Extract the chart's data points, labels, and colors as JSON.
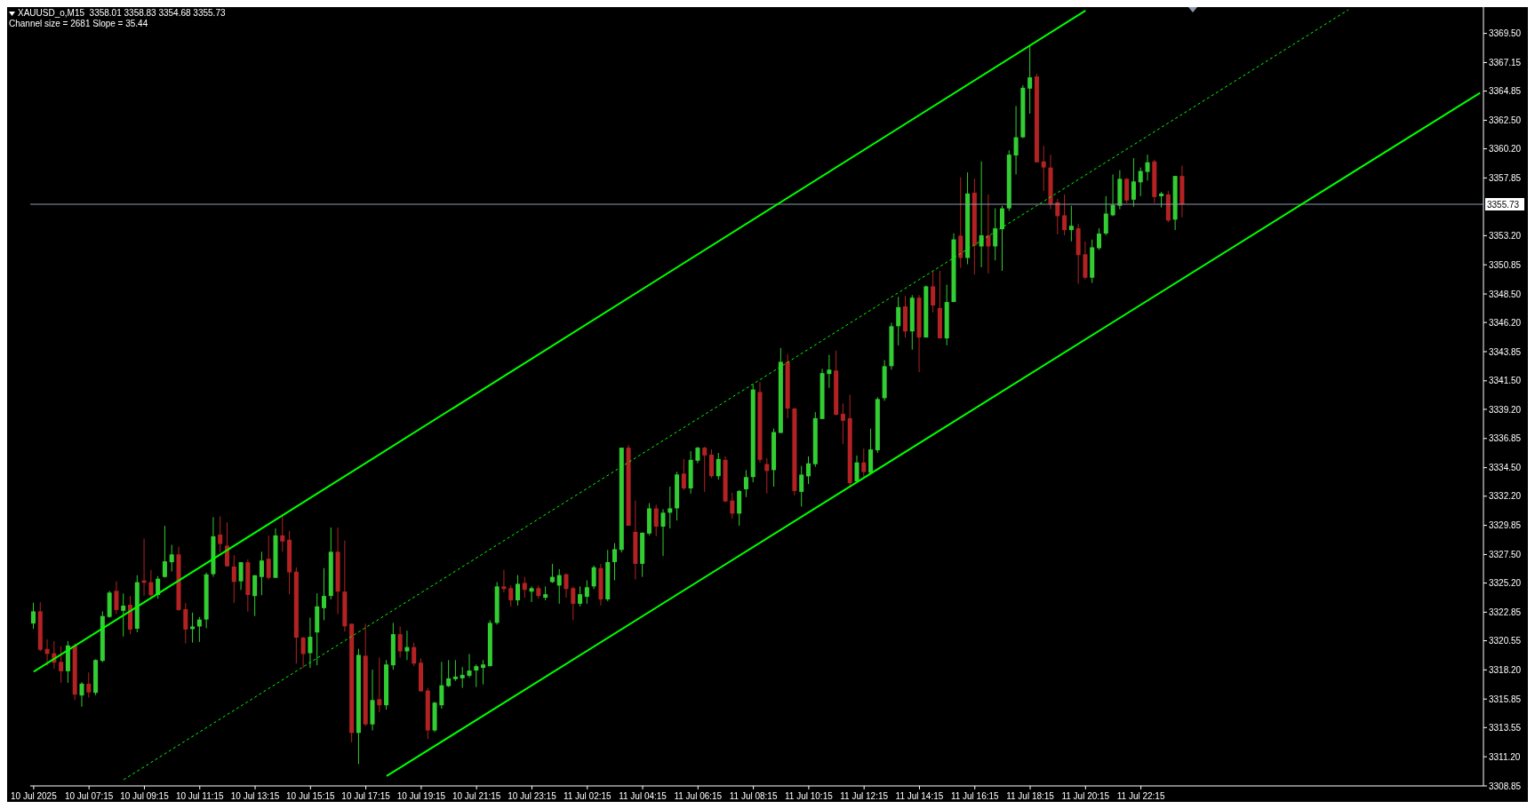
{
  "chart_data": {
    "type": "candlestick",
    "title": "XAUUSD_o,M15  3358.01 3358.83 3354.68 3355.73",
    "subtitle": "Channel size = 2681 Slope = 35.44",
    "categories": [
      "10 Jul 2025",
      null,
      null,
      null,
      null,
      null,
      null,
      null,
      "10 Jul 07:15",
      null,
      null,
      null,
      null,
      null,
      null,
      null,
      "10 Jul 09:15",
      null,
      null,
      null,
      null,
      null,
      null,
      null,
      "10 Jul 11:15",
      null,
      null,
      null,
      null,
      null,
      null,
      null,
      "10 Jul 13:15",
      null,
      null,
      null,
      null,
      null,
      null,
      null,
      "10 Jul 15:15",
      null,
      null,
      null,
      null,
      null,
      null,
      null,
      "10 Jul 17:15",
      null,
      null,
      null,
      null,
      null,
      null,
      null,
      "10 Jul 19:15",
      null,
      null,
      null,
      null,
      null,
      null,
      null,
      "10 Jul 21:15",
      null,
      null,
      null,
      null,
      null,
      null,
      null,
      "10 Jul 23:15",
      null,
      null,
      null,
      null,
      null,
      null,
      null,
      "11 Jul 02:15",
      null,
      null,
      null,
      null,
      null,
      null,
      null,
      "11 Jul 04:15",
      null,
      null,
      null,
      null,
      null,
      null,
      null,
      "11 Jul 06:15",
      null,
      null,
      null,
      null,
      null,
      null,
      null,
      "11 Jul 08:15",
      null,
      null,
      null,
      null,
      null,
      null,
      null,
      "11 Jul 10:15",
      null,
      null,
      null,
      null,
      null,
      null,
      null,
      "11 Jul 12:15",
      null,
      null,
      null,
      null,
      null,
      null,
      null,
      "11 Jul 14:15",
      null,
      null,
      null,
      null,
      null,
      null,
      null,
      "11 Jul 16:15",
      null,
      null,
      null,
      null,
      null,
      null,
      null,
      "11 Jul 18:15",
      null,
      null,
      null,
      null,
      null,
      null,
      null,
      "11 Jul 20:15",
      null,
      null,
      null,
      null,
      null,
      null,
      null,
      "11 Jul 22:15",
      null,
      null,
      null,
      null,
      null,
      null,
      null,
      null,
      null,
      null,
      null,
      null,
      null,
      null,
      null,
      null,
      null,
      null,
      null,
      null,
      null,
      null,
      null,
      null,
      null,
      null,
      null,
      null,
      null,
      null,
      null,
      null,
      null,
      null,
      null,
      null,
      null,
      null,
      null,
      null,
      null,
      null,
      null,
      null,
      null,
      null,
      null,
      null,
      null
    ],
    "ohlc": [
      [
        3321.94,
        3323.61,
        3321.52,
        3322.92
      ],
      [
        3322.92,
        3323.66,
        3319.7,
        3319.82
      ],
      [
        3319.89,
        3320.66,
        3318.54,
        3319.49
      ],
      [
        3319.54,
        3320.52,
        3318.3,
        3318.79
      ],
      [
        3318.84,
        3320.1,
        3317.16,
        3318.09
      ],
      [
        3318.09,
        3320.52,
        3317.16,
        3320.17
      ],
      [
        3320.17,
        3320.35,
        3315.76,
        3316.21
      ],
      [
        3316.14,
        3317.21,
        3315.23,
        3317.09
      ],
      [
        3317.09,
        3318.0,
        3315.97,
        3316.39
      ],
      [
        3316.35,
        3319.05,
        3316.16,
        3319.0
      ],
      [
        3318.93,
        3322.92,
        3318.82,
        3322.54
      ],
      [
        3322.47,
        3324.57,
        3322.4,
        3324.43
      ],
      [
        3324.57,
        3325.34,
        3322.71,
        3323.03
      ],
      [
        3322.96,
        3324.36,
        3320.89,
        3323.38
      ],
      [
        3323.45,
        3324.15,
        3321.08,
        3321.45
      ],
      [
        3321.52,
        3325.83,
        3321.24,
        3325.27
      ],
      [
        3325.41,
        3328.79,
        3324.17,
        3325.22
      ],
      [
        3325.27,
        3326.25,
        3324.08,
        3324.22
      ],
      [
        3324.24,
        3325.76,
        3323.94,
        3325.55
      ],
      [
        3325.69,
        3329.81,
        3325.64,
        3326.95
      ],
      [
        3326.88,
        3328.28,
        3326.13,
        3327.51
      ],
      [
        3327.51,
        3328.14,
        3322.96,
        3323.03
      ],
      [
        3323.1,
        3323.59,
        3320.33,
        3321.45
      ],
      [
        3321.49,
        3322.82,
        3320.4,
        3321.7
      ],
      [
        3321.7,
        3322.47,
        3320.45,
        3322.26
      ],
      [
        3322.26,
        3326.04,
        3321.56,
        3325.9
      ],
      [
        3325.92,
        3330.51,
        3325.71,
        3328.97
      ],
      [
        3329.11,
        3330.58,
        3327.65,
        3328.35
      ],
      [
        3328.21,
        3330.09,
        3326.53,
        3326.55
      ],
      [
        3326.53,
        3327.44,
        3323.59,
        3325.29
      ],
      [
        3325.34,
        3326.88,
        3324.64,
        3326.88
      ],
      [
        3326.88,
        3327.11,
        3322.89,
        3324.24
      ],
      [
        3324.15,
        3325.83,
        3322.54,
        3325.83
      ],
      [
        3325.69,
        3327.72,
        3324.22,
        3327.02
      ],
      [
        3327.16,
        3329.04,
        3325.48,
        3325.62
      ],
      [
        3325.62,
        3329.6,
        3325.62,
        3329.04
      ],
      [
        3329.04,
        3330.72,
        3327.72,
        3328.55
      ],
      [
        3328.69,
        3329.39,
        3324.29,
        3326.06
      ],
      [
        3326.12,
        3326.47,
        3318.71,
        3320.8
      ],
      [
        3320.8,
        3320.87,
        3318.36,
        3319.48
      ],
      [
        3319.55,
        3322.41,
        3318.36,
        3320.87
      ],
      [
        3321.22,
        3324.37,
        3318.57,
        3323.32
      ],
      [
        3323.18,
        3326.4,
        3322.2,
        3324.16
      ],
      [
        3324.16,
        3329.68,
        3323.88,
        3327.72
      ],
      [
        3327.72,
        3329.68,
        3322.69,
        3324.51
      ],
      [
        3324.51,
        3328.63,
        3321.29,
        3321.71
      ],
      [
        3321.92,
        3321.92,
        3312.35,
        3313.12
      ],
      [
        3313.12,
        3319.9,
        3310.6,
        3319.41
      ],
      [
        3319.34,
        3321.92,
        3313.67,
        3313.81
      ],
      [
        3313.81,
        3318.22,
        3313.32,
        3315.77
      ],
      [
        3315.84,
        3319.2,
        3314.79,
        3315.35
      ],
      [
        3315.35,
        3318.99,
        3315.0,
        3318.64
      ],
      [
        3318.57,
        3321.99,
        3318.22,
        3321.08
      ],
      [
        3321.08,
        3321.71,
        3319.2,
        3319.69
      ],
      [
        3319.69,
        3321.36,
        3318.99,
        3320.04
      ],
      [
        3320.04,
        3320.38,
        3318.5,
        3318.71
      ],
      [
        3318.78,
        3319.13,
        3316.47,
        3316.47
      ],
      [
        3316.54,
        3316.75,
        3312.63,
        3313.32
      ],
      [
        3313.32,
        3315.63,
        3313.19,
        3315.56
      ],
      [
        3315.35,
        3318.85,
        3315.07,
        3316.96
      ],
      [
        3316.89,
        3318.99,
        3316.82,
        3317.52
      ],
      [
        3317.45,
        3318.99,
        3317.31,
        3317.66
      ],
      [
        3317.52,
        3318.43,
        3316.75,
        3317.8
      ],
      [
        3317.73,
        3319.48,
        3317.59,
        3318.15
      ],
      [
        3318.15,
        3318.64,
        3316.82,
        3318.5
      ],
      [
        3318.36,
        3318.99,
        3317.03,
        3318.64
      ],
      [
        3318.5,
        3322.2,
        3318.5,
        3321.99
      ],
      [
        3321.99,
        3325.28,
        3321.85,
        3324.93
      ],
      [
        3324.93,
        3326.26,
        3324.44,
        3324.72
      ],
      [
        3324.79,
        3325.0,
        3323.32,
        3323.81
      ],
      [
        3323.81,
        3325.84,
        3323.39,
        3325.14
      ],
      [
        3325.21,
        3325.7,
        3324.02,
        3324.65
      ],
      [
        3324.51,
        3324.93,
        3323.67,
        3324.79
      ],
      [
        3324.79,
        3325.0,
        3323.95,
        3324.16
      ],
      [
        3324.02,
        3324.93,
        3323.81,
        3324.3
      ],
      [
        3325.28,
        3326.75,
        3325.21,
        3325.7
      ],
      [
        3325.0,
        3326.33,
        3323.53,
        3325.84
      ],
      [
        3325.91,
        3325.98,
        3324.02,
        3324.72
      ],
      [
        3324.79,
        3324.93,
        3322.2,
        3323.53
      ],
      [
        3323.53,
        3324.93,
        3323.32,
        3324.3
      ],
      [
        3324.09,
        3325.42,
        3323.53,
        3324.86
      ],
      [
        3324.93,
        3326.61,
        3324.72,
        3326.47
      ],
      [
        3326.4,
        3326.75,
        3323.39,
        3323.88
      ],
      [
        3323.88,
        3327.87,
        3323.74,
        3326.89
      ],
      [
        3326.89,
        3328.42,
        3325.42,
        3327.93
      ],
      [
        3327.87,
        3336.11,
        3327.66,
        3336.11
      ],
      [
        3336.11,
        3336.32,
        3329.82,
        3329.82
      ],
      [
        3329.33,
        3331.85,
        3325.49,
        3326.75
      ],
      [
        3326.75,
        3329.26,
        3325.7,
        3329.26
      ],
      [
        3329.19,
        3331.64,
        3329.05,
        3331.22
      ],
      [
        3331.22,
        3331.5,
        3328.98,
        3329.75
      ],
      [
        3329.75,
        3331.15,
        3327.38,
        3330.87
      ],
      [
        3330.87,
        3332.97,
        3329.61,
        3331.22
      ],
      [
        3331.22,
        3334.16,
        3330.24,
        3333.95
      ],
      [
        3334.02,
        3335.2,
        3332.69,
        3332.83
      ],
      [
        3332.83,
        3335.83,
        3332.41,
        3335.13
      ],
      [
        3335.06,
        3336.18,
        3334.85,
        3336.11
      ],
      [
        3336.11,
        3336.18,
        3332.55,
        3335.48
      ],
      [
        3335.55,
        3335.97,
        3333.67,
        3333.81
      ],
      [
        3333.81,
        3335.69,
        3333.53,
        3335.2
      ],
      [
        3335.13,
        3335.41,
        3331.71,
        3331.78
      ],
      [
        3331.85,
        3332.48,
        3330.38,
        3330.8
      ],
      [
        3330.8,
        3332.69,
        3329.82,
        3332.62
      ],
      [
        3332.76,
        3334.3,
        3332.13,
        3333.74
      ],
      [
        3333.74,
        3341.2,
        3333.32,
        3340.8
      ],
      [
        3340.6,
        3341.4,
        3334.9,
        3335.13
      ],
      [
        3334.79,
        3335.27,
        3332.41,
        3334.23
      ],
      [
        3334.3,
        3337.65,
        3332.97,
        3337.37
      ],
      [
        3337.3,
        3344.15,
        3337.3,
        3343.03
      ],
      [
        3343.03,
        3343.66,
        3338.49,
        3339.26
      ],
      [
        3339.26,
        3339.33,
        3332.27,
        3332.62
      ],
      [
        3332.55,
        3334.64,
        3331.36,
        3333.94
      ],
      [
        3333.8,
        3335.41,
        3333.18,
        3334.85
      ],
      [
        3334.78,
        3338.98,
        3334.57,
        3338.49
      ],
      [
        3338.42,
        3342.47,
        3338.42,
        3342.12
      ],
      [
        3342.05,
        3343.59,
        3340.93,
        3342.4
      ],
      [
        3342.33,
        3343.94,
        3338.7,
        3338.77
      ],
      [
        3338.84,
        3339.68,
        3336.39,
        3338.28
      ],
      [
        3338.49,
        3340.38,
        3333.04,
        3333.25
      ],
      [
        3333.39,
        3335.48,
        3333.39,
        3334.92
      ],
      [
        3334.92,
        3336.04,
        3333.73,
        3334.15
      ],
      [
        3334.08,
        3337.65,
        3334.08,
        3335.97
      ],
      [
        3335.9,
        3340.17,
        3335.69,
        3340.03
      ],
      [
        3340.1,
        3343.17,
        3339.89,
        3342.68
      ],
      [
        3342.68,
        3346.18,
        3342.4,
        3345.9
      ],
      [
        3345.9,
        3348.27,
        3344.36,
        3347.44
      ],
      [
        3347.5,
        3348.34,
        3344.99,
        3345.48
      ],
      [
        3345.48,
        3348.41,
        3344.01,
        3348.2
      ],
      [
        3348.2,
        3348.41,
        3342.19,
        3344.99
      ],
      [
        3344.99,
        3349.18,
        3344.99,
        3349.11
      ],
      [
        3349.11,
        3350.3,
        3347.02,
        3347.57
      ],
      [
        3347.37,
        3350.37,
        3344.92,
        3344.92
      ],
      [
        3344.92,
        3349.25,
        3344.36,
        3347.85
      ],
      [
        3347.85,
        3353.4,
        3347.85,
        3352.9
      ],
      [
        3353.2,
        3357.9,
        3350.6,
        3351.4
      ],
      [
        3351.4,
        3358.3,
        3350.9,
        3356.6
      ],
      [
        3356.66,
        3357.8,
        3350.07,
        3352.4
      ],
      [
        3352.33,
        3359.18,
        3350.65,
        3353.23
      ],
      [
        3353.23,
        3356.52,
        3350.16,
        3352.33
      ],
      [
        3352.33,
        3355.4,
        3351.21,
        3353.79
      ],
      [
        3353.72,
        3355.61,
        3350.37,
        3355.4
      ],
      [
        3355.4,
        3360.08,
        3355.19,
        3359.73
      ],
      [
        3359.66,
        3363.65,
        3358.13,
        3361.13
      ],
      [
        3361.13,
        3365.33,
        3361.06,
        3365.12
      ],
      [
        3365.05,
        3368.47,
        3363.02,
        3365.96
      ],
      [
        3366.03,
        3366.24,
        3359.11,
        3359.11
      ],
      [
        3359.18,
        3360.43,
        3356.8,
        3358.69
      ],
      [
        3358.69,
        3359.73,
        3355.33,
        3355.75
      ],
      [
        3355.89,
        3356.17,
        3353.3,
        3354.77
      ],
      [
        3354.84,
        3356.52,
        3353.23,
        3353.65
      ],
      [
        3353.65,
        3355.61,
        3352.74,
        3354.0
      ],
      [
        3353.79,
        3354.14,
        3349.32,
        3351.63
      ],
      [
        3351.7,
        3352.74,
        3349.67,
        3349.81
      ],
      [
        3349.81,
        3352.88,
        3349.39,
        3352.26
      ],
      [
        3352.19,
        3353.79,
        3352.05,
        3353.37
      ],
      [
        3353.37,
        3356.38,
        3353.23,
        3354.98
      ],
      [
        3354.84,
        3358.13,
        3354.77,
        3355.68
      ],
      [
        3355.61,
        3358.48,
        3355.33,
        3357.78
      ],
      [
        3357.78,
        3357.85,
        3355.82,
        3356.03
      ],
      [
        3356.1,
        3359.45,
        3355.54,
        3357.57
      ],
      [
        3357.5,
        3358.69,
        3356.38,
        3358.41
      ],
      [
        3358.34,
        3359.73,
        3357.64,
        3359.11
      ],
      [
        3359.18,
        3359.32,
        3355.82,
        3356.31
      ],
      [
        3356.38,
        3356.73,
        3355.47,
        3356.59
      ],
      [
        3356.52,
        3356.8,
        3354.28,
        3354.42
      ],
      [
        3354.49,
        3358.01,
        3353.65,
        3358.01
      ],
      [
        3358.01,
        3358.83,
        3354.68,
        3355.73
      ],
      null,
      null,
      null,
      null,
      null,
      null,
      null,
      null,
      null,
      null,
      null,
      null,
      null,
      null,
      null,
      null,
      null,
      null,
      null,
      null,
      null,
      null,
      null,
      null,
      null,
      null,
      null,
      null,
      null,
      null,
      null,
      null,
      null,
      null,
      null,
      null,
      null,
      null,
      null,
      null,
      null,
      null,
      null
    ],
    "colors": [
      "#32cd32",
      "#b22222",
      "#b22222",
      "#b22222",
      "#b22222",
      "#32cd32",
      "#b22222",
      "#32cd32",
      "#b22222",
      "#32cd32",
      "#32cd32",
      "#32cd32",
      "#b22222",
      "#32cd32",
      "#b22222",
      "#32cd32",
      "#b22222",
      "#b22222",
      "#32cd32",
      "#32cd32",
      "#32cd32",
      "#b22222",
      "#b22222",
      "#32cd32",
      "#32cd32",
      "#32cd32",
      "#32cd32",
      "#b22222",
      "#b22222",
      "#b22222",
      "#32cd32",
      "#b22222",
      "#32cd32",
      "#32cd32",
      "#b22222",
      "#32cd32",
      "#b22222",
      "#b22222",
      "#b22222",
      "#b22222",
      "#32cd32",
      "#32cd32",
      "#32cd32",
      "#32cd32",
      "#b22222",
      "#b22222",
      "#b22222",
      "#32cd32",
      "#b22222",
      "#32cd32",
      "#b22222",
      "#32cd32",
      "#32cd32",
      "#b22222",
      "#32cd32",
      "#b22222",
      "#b22222",
      "#b22222",
      "#32cd32",
      "#32cd32",
      "#32cd32",
      "#32cd32",
      "#32cd32",
      "#32cd32",
      "#32cd32",
      "#32cd32",
      "#32cd32",
      "#32cd32",
      "#b22222",
      "#b22222",
      "#32cd32",
      "#b22222",
      "#32cd32",
      "#b22222",
      "#32cd32",
      "#32cd32",
      "#32cd32",
      "#b22222",
      "#b22222",
      "#32cd32",
      "#32cd32",
      "#32cd32",
      "#b22222",
      "#32cd32",
      "#32cd32",
      "#32cd32",
      "#b22222",
      "#b22222",
      "#32cd32",
      "#32cd32",
      "#b22222",
      "#32cd32",
      "#32cd32",
      "#32cd32",
      "#b22222",
      "#32cd32",
      "#32cd32",
      "#b22222",
      "#b22222",
      "#32cd32",
      "#b22222",
      "#b22222",
      "#32cd32",
      "#32cd32",
      "#32cd32",
      "#b22222",
      "#b22222",
      "#32cd32",
      "#32cd32",
      "#b22222",
      "#b22222",
      "#32cd32",
      "#32cd32",
      "#32cd32",
      "#32cd32",
      "#32cd32",
      "#b22222",
      "#b22222",
      "#b22222",
      "#32cd32",
      "#b22222",
      "#32cd32",
      "#32cd32",
      "#32cd32",
      "#32cd32",
      "#32cd32",
      "#b22222",
      "#32cd32",
      "#b22222",
      "#32cd32",
      "#b22222",
      "#b22222",
      "#32cd32",
      "#32cd32",
      "#b22222",
      "#32cd32",
      "#b22222",
      "#32cd32",
      "#b22222",
      "#32cd32",
      "#32cd32",
      "#32cd32",
      "#32cd32",
      "#32cd32",
      "#32cd32",
      "#b22222",
      "#b22222",
      "#b22222",
      "#b22222",
      "#b22222",
      "#32cd32",
      "#b22222",
      "#b22222",
      "#32cd32",
      "#32cd32",
      "#32cd32",
      "#32cd32",
      "#32cd32",
      "#b22222",
      "#32cd32",
      "#32cd32",
      "#32cd32",
      "#b22222",
      "#32cd32",
      "#b22222",
      "#32cd32",
      "#b22222",
      null,
      null,
      null,
      null,
      null,
      null,
      null,
      null,
      null,
      null,
      null,
      null,
      null,
      null,
      null,
      null,
      null,
      null,
      null,
      null,
      null,
      null,
      null,
      null,
      null,
      null,
      null,
      null,
      null,
      null,
      null,
      null,
      null,
      null,
      null,
      null,
      null,
      null,
      null,
      null,
      null,
      null,
      null
    ],
    "series": [
      {
        "type": "line",
        "color": "#00ff00",
        "line_style": "solid",
        "values": [
          3318.05,
          null,
          null,
          null,
          null,
          null,
          null,
          null,
          null,
          null,
          null,
          null,
          null,
          null,
          null,
          null,
          null,
          null,
          null,
          null,
          null,
          null,
          null,
          null,
          null,
          null,
          null,
          null,
          null,
          null,
          null,
          null,
          null,
          null,
          null,
          null,
          null,
          null,
          null,
          null,
          null,
          null,
          null,
          null,
          null,
          null,
          null,
          null,
          null,
          null,
          null,
          null,
          null,
          null,
          null,
          null,
          null,
          null,
          null,
          null,
          null,
          null,
          null,
          null,
          null,
          null,
          null,
          null,
          null,
          null,
          null,
          null,
          null,
          null,
          null,
          null,
          null,
          null,
          null,
          null,
          null,
          null,
          null,
          null,
          null,
          null,
          null,
          null,
          null,
          null,
          null,
          null,
          null,
          null,
          null,
          null,
          null,
          null,
          null,
          null,
          null,
          null,
          null,
          null,
          null,
          null,
          null,
          null,
          null,
          null,
          null,
          null,
          null,
          null,
          null,
          null,
          null,
          null,
          null,
          null,
          null,
          null,
          null,
          null,
          null,
          null,
          null,
          null,
          null,
          null,
          null,
          null,
          null,
          null,
          null,
          null,
          null,
          null,
          null,
          null,
          null,
          null,
          null,
          null,
          null,
          null,
          null,
          null,
          null,
          null,
          null,
          null,
          3371.34,
          null,
          null,
          null,
          null,
          null,
          null,
          null,
          null,
          null,
          null,
          null,
          null,
          null,
          null,
          null,
          null,
          null,
          null,
          null,
          null,
          null,
          null,
          null,
          null,
          null,
          null,
          null,
          null,
          null,
          null,
          null,
          null,
          null,
          null,
          null,
          null,
          null,
          null,
          null,
          null,
          null,
          null,
          null,
          null,
          null,
          null,
          null,
          null,
          null,
          null,
          null,
          null,
          null,
          null,
          null,
          null,
          null
        ]
      },
      {
        "type": "line",
        "color": "#00ff00",
        "line_style": "dashed",
        "values": [
          null,
          null,
          null,
          null,
          null,
          null,
          null,
          null,
          null,
          null,
          null,
          null,
          null,
          3309.35,
          null,
          null,
          null,
          null,
          null,
          null,
          null,
          null,
          null,
          null,
          null,
          null,
          null,
          null,
          null,
          null,
          null,
          null,
          null,
          null,
          null,
          null,
          null,
          null,
          null,
          null,
          null,
          null,
          null,
          null,
          null,
          null,
          null,
          null,
          null,
          null,
          null,
          null,
          null,
          null,
          null,
          null,
          null,
          null,
          null,
          null,
          null,
          null,
          null,
          null,
          null,
          null,
          null,
          null,
          null,
          null,
          null,
          null,
          null,
          null,
          null,
          null,
          null,
          null,
          null,
          null,
          null,
          null,
          null,
          null,
          null,
          null,
          null,
          null,
          null,
          null,
          null,
          null,
          null,
          null,
          null,
          null,
          null,
          null,
          null,
          null,
          null,
          null,
          null,
          null,
          null,
          null,
          null,
          null,
          null,
          null,
          null,
          null,
          null,
          null,
          null,
          null,
          null,
          null,
          null,
          null,
          null,
          null,
          null,
          null,
          null,
          null,
          null,
          null,
          null,
          null,
          null,
          null,
          null,
          null,
          null,
          null,
          null,
          null,
          null,
          null,
          null,
          null,
          null,
          null,
          null,
          null,
          null,
          null,
          null,
          null,
          null,
          null,
          null,
          null,
          null,
          null,
          null,
          null,
          null,
          null,
          null,
          null,
          null,
          null,
          null,
          null,
          null,
          null,
          null,
          null,
          null,
          null,
          null,
          null,
          null,
          null,
          null,
          null,
          null,
          null,
          null,
          null,
          null,
          null,
          null,
          null,
          null,
          null,
          null,
          null,
          3371.41,
          null,
          null,
          null,
          null,
          null,
          null,
          null,
          null,
          null,
          null,
          null,
          null,
          null,
          null,
          null,
          null,
          null,
          null,
          null
        ]
      },
      {
        "type": "line",
        "color": "#00ff00",
        "line_style": "solid",
        "values": [
          null,
          null,
          null,
          null,
          null,
          null,
          null,
          null,
          null,
          null,
          null,
          null,
          null,
          null,
          null,
          null,
          null,
          null,
          null,
          null,
          null,
          null,
          null,
          null,
          null,
          null,
          null,
          null,
          null,
          null,
          null,
          null,
          null,
          null,
          null,
          null,
          null,
          null,
          null,
          null,
          null,
          null,
          null,
          null,
          null,
          null,
          null,
          null,
          null,
          null,
          null,
          3309.64,
          null,
          null,
          null,
          null,
          null,
          null,
          null,
          null,
          null,
          null,
          null,
          null,
          null,
          null,
          null,
          null,
          null,
          null,
          null,
          null,
          null,
          null,
          null,
          null,
          null,
          null,
          null,
          null,
          null,
          null,
          null,
          null,
          null,
          null,
          null,
          null,
          null,
          null,
          null,
          null,
          null,
          null,
          null,
          null,
          null,
          null,
          null,
          null,
          null,
          null,
          null,
          null,
          null,
          null,
          null,
          null,
          null,
          null,
          null,
          null,
          null,
          null,
          null,
          null,
          null,
          null,
          null,
          null,
          null,
          null,
          null,
          null,
          null,
          null,
          null,
          null,
          null,
          null,
          null,
          null,
          null,
          null,
          null,
          null,
          null,
          null,
          null,
          null,
          null,
          null,
          null,
          null,
          null,
          null,
          null,
          null,
          null,
          null,
          null,
          null,
          null,
          null,
          null,
          null,
          null,
          null,
          null,
          null,
          null,
          null,
          null,
          null,
          null,
          null,
          null,
          null,
          null,
          null,
          null,
          null,
          null,
          null,
          null,
          null,
          null,
          null,
          null,
          null,
          null,
          null,
          null,
          null,
          null,
          null,
          null,
          null,
          null,
          null,
          null,
          null,
          null,
          null,
          null,
          null,
          null,
          null,
          null,
          null,
          null,
          null,
          null,
          null,
          null,
          null,
          null,
          null,
          null,
          3364.71
        ]
      }
    ],
    "ref_lines": [
      {
        "axis": "y",
        "value": 3355.73,
        "label": "3355.73",
        "color": "#8c9ab0"
      }
    ],
    "ylim": [
      3308.85,
      3371.62
    ],
    "yticks": [
      {
        "value": 3369.5,
        "label": "3369.50"
      },
      {
        "value": 3367.15,
        "label": "3367.15"
      },
      {
        "value": 3364.85,
        "label": "3364.85"
      },
      {
        "value": 3362.5,
        "label": "3362.50"
      },
      {
        "value": 3360.2,
        "label": "3360.20"
      },
      {
        "value": 3357.85,
        "label": "3357.85"
      },
      {
        "value": 3353.2,
        "label": "3353.20"
      },
      {
        "value": 3350.85,
        "label": "3350.85"
      },
      {
        "value": 3348.5,
        "label": "3348.50"
      },
      {
        "value": 3346.2,
        "label": "3346.20"
      },
      {
        "value": 3343.85,
        "label": "3343.85"
      },
      {
        "value": 3341.5,
        "label": "3341.50"
      },
      {
        "value": 3339.2,
        "label": "3339.20"
      },
      {
        "value": 3336.85,
        "label": "3336.85"
      },
      {
        "value": 3334.5,
        "label": "3334.50"
      },
      {
        "value": 3332.2,
        "label": "3332.20"
      },
      {
        "value": 3329.85,
        "label": "3329.85"
      },
      {
        "value": 3327.5,
        "label": "3327.50"
      },
      {
        "value": 3325.2,
        "label": "3325.20"
      },
      {
        "value": 3322.85,
        "label": "3322.85"
      },
      {
        "value": 3320.55,
        "label": "3320.55"
      },
      {
        "value": 3318.2,
        "label": "3318.20"
      },
      {
        "value": 3315.85,
        "label": "3315.85"
      },
      {
        "value": 3313.55,
        "label": "3313.55"
      },
      {
        "value": 3311.2,
        "label": "3311.20"
      },
      {
        "value": 3308.85,
        "label": "3308.85"
      }
    ]
  }
}
